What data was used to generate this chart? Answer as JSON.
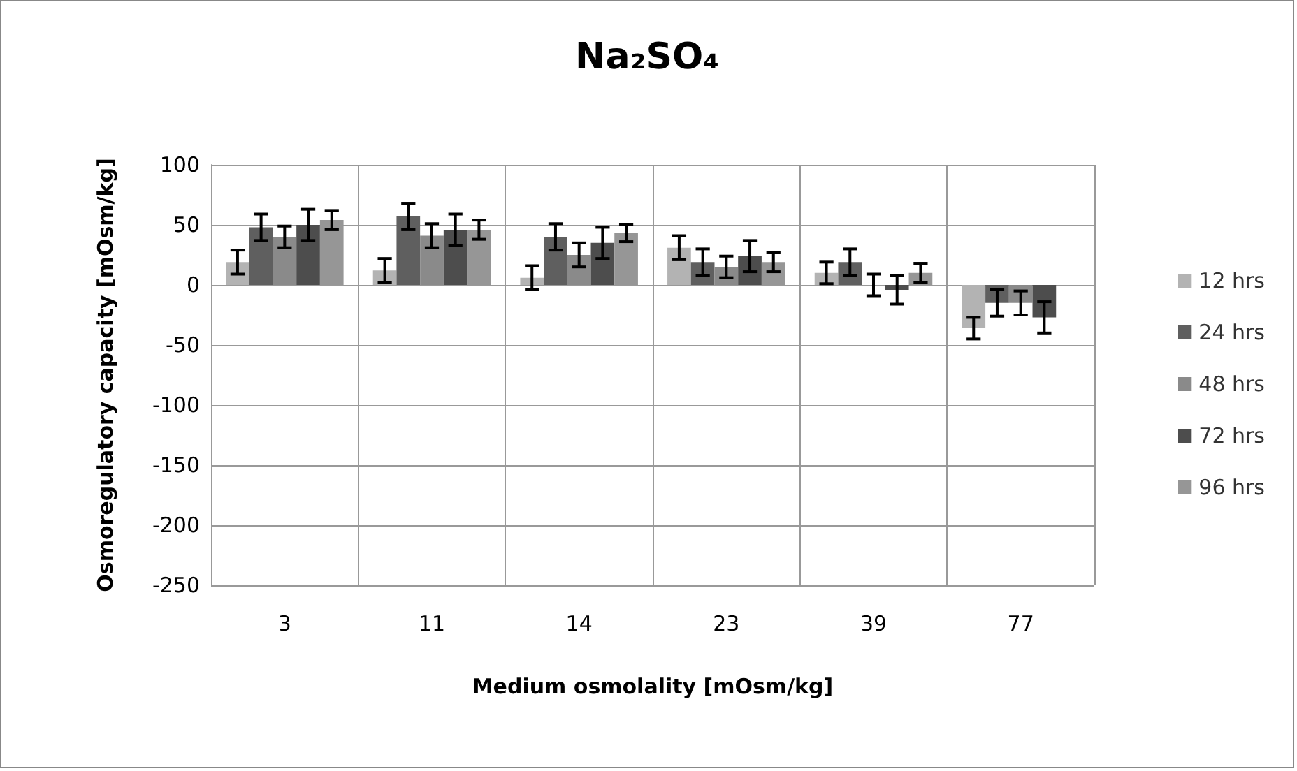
{
  "chart_data": {
    "type": "bar",
    "title": "Na₂SO₄",
    "xlabel": "Medium osmolality [mOsm/kg]",
    "ylabel": "Osmoregulatory capacity [mOsm/kg]",
    "categories": [
      "3",
      "11",
      "14",
      "23",
      "39",
      "77"
    ],
    "series": [
      {
        "name": "12 hrs",
        "color": "#b3b3b3",
        "values": [
          19,
          12,
          6,
          31,
          10,
          -36
        ],
        "errors": [
          10,
          10,
          10,
          10,
          9,
          9
        ]
      },
      {
        "name": "24 hrs",
        "color": "#5f5f5f",
        "values": [
          48,
          57,
          40,
          19,
          19,
          -15
        ],
        "errors": [
          11,
          11,
          11,
          11,
          11,
          11
        ]
      },
      {
        "name": "48 hrs",
        "color": "#8a8a8a",
        "values": [
          40,
          41,
          25,
          15,
          0,
          -15
        ],
        "errors": [
          9,
          10,
          10,
          9,
          9,
          10
        ]
      },
      {
        "name": "72 hrs",
        "color": "#4d4d4d",
        "values": [
          50,
          46,
          35,
          24,
          -4,
          -27
        ],
        "errors": [
          13,
          13,
          13,
          13,
          12,
          13
        ]
      },
      {
        "name": "96 hrs",
        "color": "#969696",
        "values": [
          54,
          46,
          43,
          19,
          10,
          null
        ],
        "errors": [
          8,
          8,
          7,
          8,
          8,
          null
        ]
      }
    ],
    "ylim": [
      -250,
      100
    ],
    "yticks": [
      -250,
      -200,
      -150,
      -100,
      -50,
      0,
      50,
      100
    ],
    "grid": true,
    "legend": "right"
  }
}
